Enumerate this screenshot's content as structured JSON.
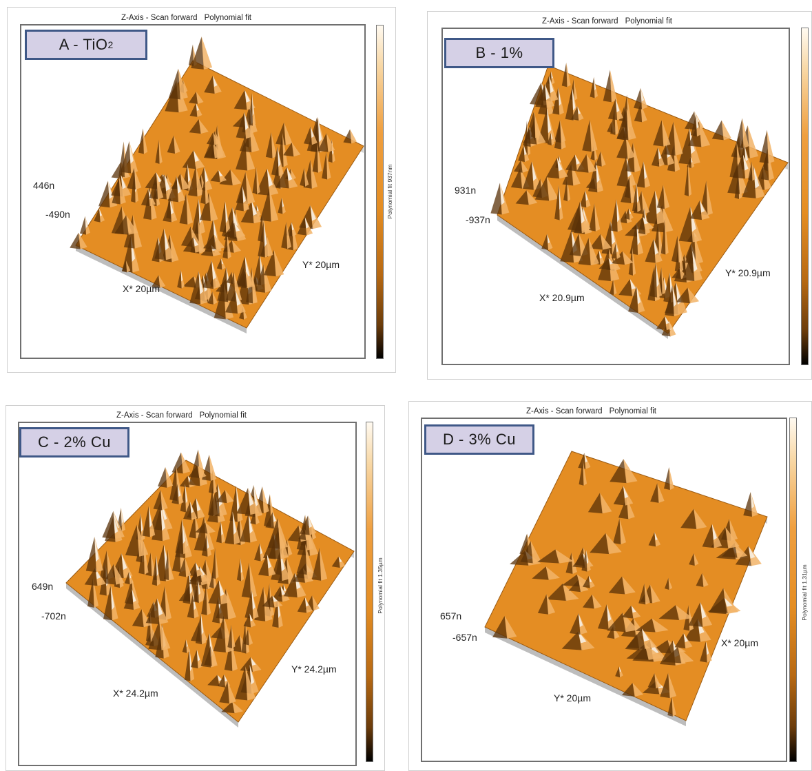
{
  "colors": {
    "label_fill": "#d5d0e6",
    "label_border": "#3f5887",
    "surface_orange": "#e48d23"
  },
  "panels": [
    {
      "id": "a",
      "header_axis": "Z-Axis - Scan forward",
      "header_fit": "Polynomial fit",
      "label_prefix": "A - TiO",
      "label_sub": "2",
      "colorbar_title": "Polynomial fit 937nm",
      "z_max": "446n",
      "z_min": "-490n",
      "x_axis": "X* 20µm",
      "y_axis": "Y* 20µm"
    },
    {
      "id": "b",
      "header_axis": "Z-Axis - Scan forward",
      "header_fit": "Polynomial fit",
      "label_prefix": "B - 1%",
      "label_sub": "",
      "colorbar_title": "",
      "z_max": "931n",
      "z_min": "-937n",
      "x_axis": "X* 20.9µm",
      "y_axis": "Y* 20.9µm"
    },
    {
      "id": "c",
      "header_axis": "Z-Axis - Scan forward",
      "header_fit": "Polynomial fit",
      "label_prefix": "C - 2% Cu",
      "label_sub": "",
      "colorbar_title": "Polynomial fit 1.35µm",
      "z_max": "649n",
      "z_min": "-702n",
      "x_axis": "X* 24.2µm",
      "y_axis": "Y* 24.2µm"
    },
    {
      "id": "d",
      "header_axis": "Z-Axis - Scan forward",
      "header_fit": "Polynomial fit",
      "label_prefix": "D - 3% Cu",
      "label_sub": "",
      "colorbar_title": "Polynomial fit 1.31µm",
      "z_max": "657n",
      "z_min": "-657n",
      "x_axis": "X* 20µm",
      "y_axis": "Y* 20µm"
    }
  ]
}
